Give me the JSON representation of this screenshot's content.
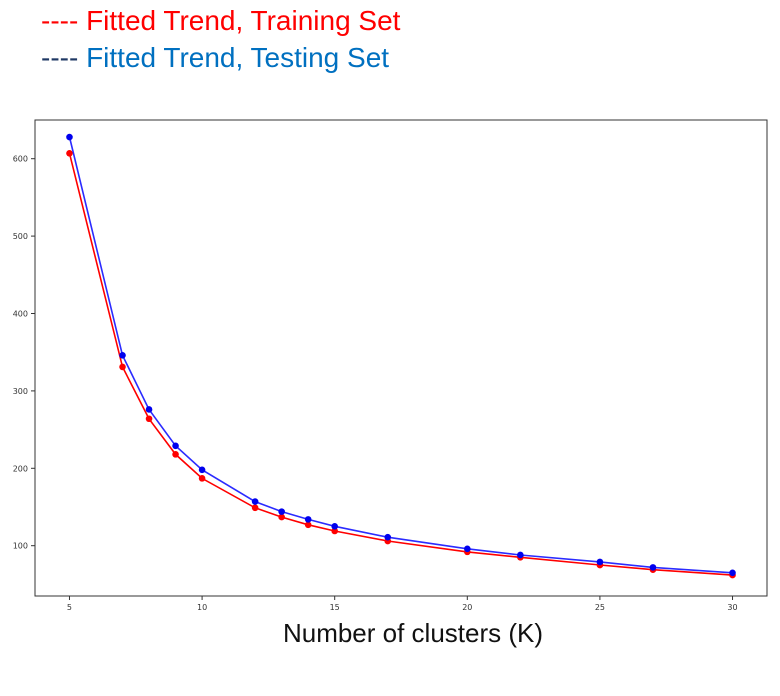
{
  "legend": {
    "training": {
      "dash": "----",
      "label": "Fitted Trend, Training Set",
      "color": "#ff0000"
    },
    "testing": {
      "dash": "----",
      "label": "Fitted Trend, Testing Set",
      "color": "#0070c0"
    }
  },
  "chart_data": {
    "type": "line",
    "title": "",
    "xlabel": "Number of clusters (K)",
    "ylabel": "",
    "xlim": [
      3.7,
      31.3
    ],
    "ylim": [
      35,
      650
    ],
    "grid": false,
    "xticks": [
      5,
      10,
      15,
      20,
      25,
      30
    ],
    "yticks": [
      100,
      200,
      300,
      400,
      500,
      600
    ],
    "x": [
      5,
      7,
      8,
      9,
      10,
      12,
      13,
      14,
      15,
      17,
      20,
      22,
      25,
      27,
      30
    ],
    "series": [
      {
        "name": "Fitted Trend, Training Set",
        "color": "#ff0000",
        "marker_color": "#ff0000",
        "values": [
          607,
          331,
          264,
          218,
          187,
          149,
          137,
          127,
          119,
          106,
          92,
          85,
          75,
          69,
          62
        ]
      },
      {
        "name": "Fitted Trend, Testing Set",
        "color": "#2b2bff",
        "marker_color": "#0000ee",
        "values": [
          628,
          346,
          276,
          229,
          198,
          157,
          144,
          134,
          125,
          111,
          96,
          88,
          79,
          72,
          65
        ]
      }
    ]
  }
}
